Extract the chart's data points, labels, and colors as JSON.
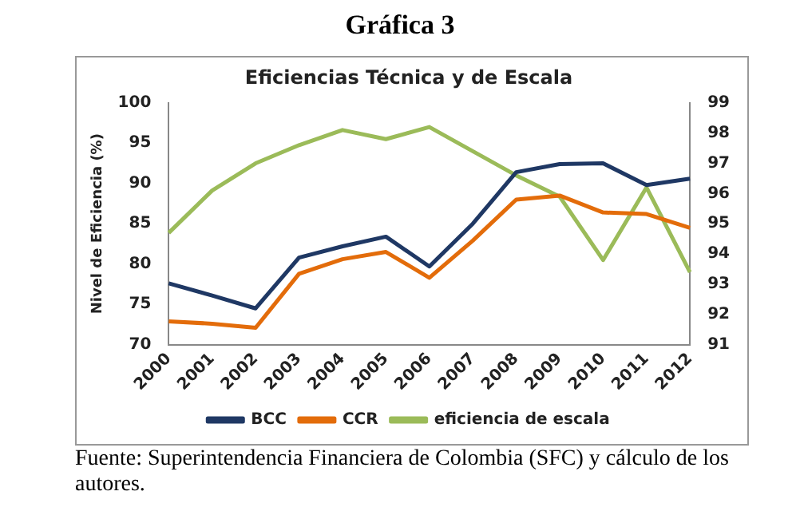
{
  "chart_data": {
    "type": "line",
    "title": "Gráfica 3",
    "subtitle": "Eficiencias Técnica y de Escala",
    "ylabel": "Nivel de Eficiencia (%)",
    "categories": [
      "2000",
      "2001",
      "2002",
      "2003",
      "2004",
      "2005",
      "2006",
      "2007",
      "2008",
      "2009",
      "2010",
      "2011",
      "2012"
    ],
    "series": [
      {
        "name": "BCC",
        "color": "#1f3864",
        "values": [
          77.6,
          76.1,
          74.5,
          80.8,
          82.2,
          83.4,
          79.7,
          85.0,
          91.4,
          92.4,
          92.5,
          89.8,
          90.6
        ]
      },
      {
        "name": "CCR",
        "color": "#e36c0a",
        "values": [
          72.9,
          72.6,
          72.1,
          78.8,
          80.6,
          81.5,
          78.3,
          82.9,
          88.0,
          88.5,
          86.4,
          86.2,
          84.5
        ]
      },
      {
        "name": "eficiencia de escala",
        "color": "#9bbb59",
        "axis": "y2",
        "values": [
          94.7,
          96.1,
          97.0,
          97.6,
          98.1,
          97.8,
          98.2,
          97.4,
          96.6,
          95.9,
          93.8,
          96.2,
          93.4
        ]
      }
    ],
    "ylim": [
      70,
      100
    ],
    "yticks": [
      70,
      75,
      80,
      85,
      90,
      95,
      100
    ],
    "y2lim": [
      91,
      99
    ],
    "y2ticks": [
      91,
      92,
      93,
      94,
      95,
      96,
      97,
      98,
      99
    ],
    "grid": false,
    "legend": "bottom",
    "marker": "none",
    "line_style": "solid",
    "annotations": [
      "Fuente: Superintendencia Financiera de Colombia (SFC) y cálculo de los autores."
    ]
  }
}
